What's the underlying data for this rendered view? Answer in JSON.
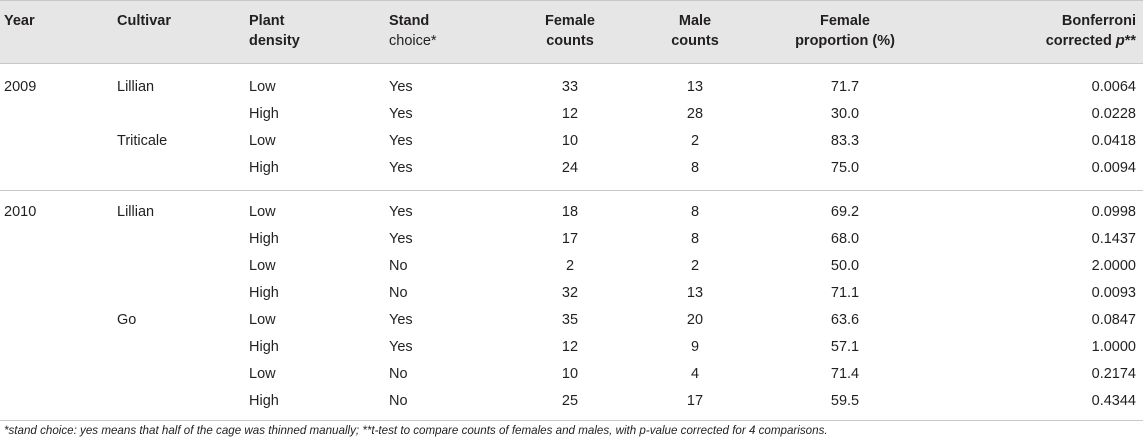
{
  "header": {
    "year": "Year",
    "cultivar": "Cultivar",
    "density_l1": "Plant",
    "density_l2": "density",
    "stand_l1": "Stand",
    "stand_l2": "choice*",
    "female_l1": "Female",
    "female_l2": "counts",
    "male_l1": "Male",
    "male_l2": "counts",
    "prop_l1": "Female",
    "prop_l2": "proportion (%)",
    "bonf_l1": "Bonferroni",
    "bonf_l2a": "corrected ",
    "bonf_l2b": "p",
    "bonf_l2c": "**"
  },
  "sections": [
    {
      "rows": [
        {
          "year": "2009",
          "cultivar": "Lillian",
          "density": "Low",
          "stand": "Yes",
          "female": "33",
          "male": "13",
          "prop": "71.7",
          "p": "0.0064"
        },
        {
          "year": "",
          "cultivar": "",
          "density": "High",
          "stand": "Yes",
          "female": "12",
          "male": "28",
          "prop": "30.0",
          "p": "0.0228"
        },
        {
          "year": "",
          "cultivar": "Triticale",
          "density": "Low",
          "stand": "Yes",
          "female": "10",
          "male": "2",
          "prop": "83.3",
          "p": "0.0418"
        },
        {
          "year": "",
          "cultivar": "",
          "density": "High",
          "stand": "Yes",
          "female": "24",
          "male": "8",
          "prop": "75.0",
          "p": "0.0094"
        }
      ]
    },
    {
      "rows": [
        {
          "year": "2010",
          "cultivar": "Lillian",
          "density": "Low",
          "stand": "Yes",
          "female": "18",
          "male": "8",
          "prop": "69.2",
          "p": "0.0998"
        },
        {
          "year": "",
          "cultivar": "",
          "density": "High",
          "stand": "Yes",
          "female": "17",
          "male": "8",
          "prop": "68.0",
          "p": "0.1437"
        },
        {
          "year": "",
          "cultivar": "",
          "density": "Low",
          "stand": "No",
          "female": "2",
          "male": "2",
          "prop": "50.0",
          "p": "2.0000"
        },
        {
          "year": "",
          "cultivar": "",
          "density": "High",
          "stand": "No",
          "female": "32",
          "male": "13",
          "prop": "71.1",
          "p": "0.0093"
        },
        {
          "year": "",
          "cultivar": "Go",
          "density": "Low",
          "stand": "Yes",
          "female": "35",
          "male": "20",
          "prop": "63.6",
          "p": "0.0847"
        },
        {
          "year": "",
          "cultivar": "",
          "density": "High",
          "stand": "Yes",
          "female": "12",
          "male": "9",
          "prop": "57.1",
          "p": "1.0000"
        },
        {
          "year": "",
          "cultivar": "",
          "density": "Low",
          "stand": "No",
          "female": "10",
          "male": "4",
          "prop": "71.4",
          "p": "0.2174"
        },
        {
          "year": "",
          "cultivar": "",
          "density": "High",
          "stand": "No",
          "female": "25",
          "male": "17",
          "prop": "59.5",
          "p": "0.4344"
        }
      ]
    }
  ],
  "footnote": "*stand choice: yes means that half of the cage was thinned manually; **t-test to compare counts of females and males, with p-value corrected for 4 comparisons."
}
